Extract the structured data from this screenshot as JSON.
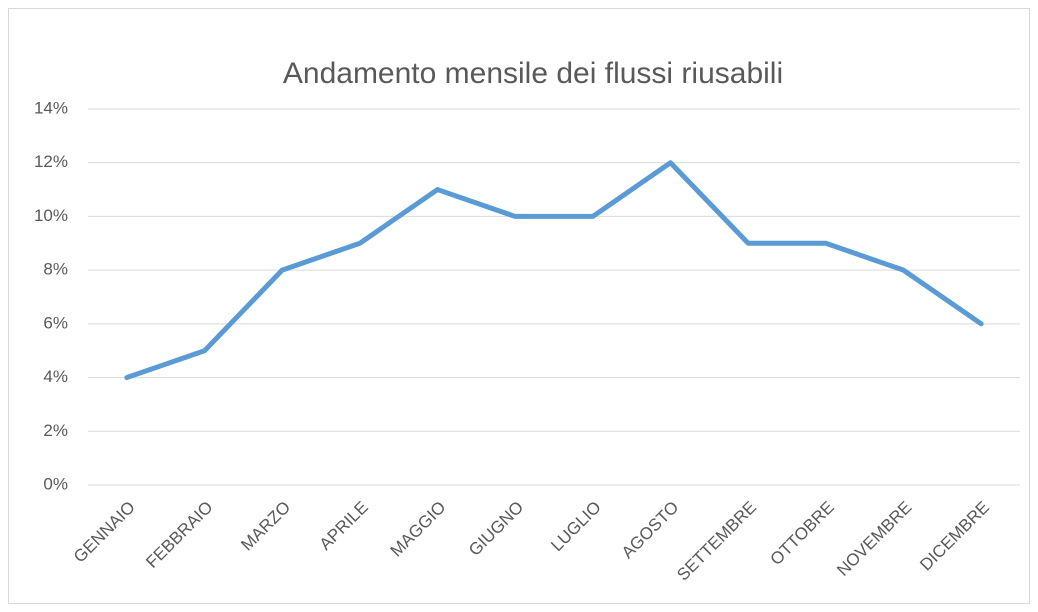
{
  "chart_data": {
    "type": "line",
    "title": "Andamento mensile dei flussi riusabili",
    "categories": [
      "GENNAIO",
      "FEBBRAIO",
      "MARZO",
      "APRILE",
      "MAGGIO",
      "GIUGNO",
      "LUGLIO",
      "AGOSTO",
      "SETTEMBRE",
      "OTTOBRE",
      "NOVEMBRE",
      "DICEMBRE"
    ],
    "values": [
      4,
      5,
      8,
      9,
      11,
      10,
      10,
      12,
      9,
      9,
      8,
      6
    ],
    "color": "#5b9bd5",
    "ylim": [
      0,
      14
    ],
    "yticks": [
      {
        "value": 0,
        "label": "0%"
      },
      {
        "value": 2,
        "label": "2%"
      },
      {
        "value": 4,
        "label": "4%"
      },
      {
        "value": 6,
        "label": "6%"
      },
      {
        "value": 8,
        "label": "8%"
      },
      {
        "value": 10,
        "label": "10%"
      },
      {
        "value": 12,
        "label": "12%"
      },
      {
        "value": 14,
        "label": "14%"
      }
    ],
    "grid": true
  }
}
